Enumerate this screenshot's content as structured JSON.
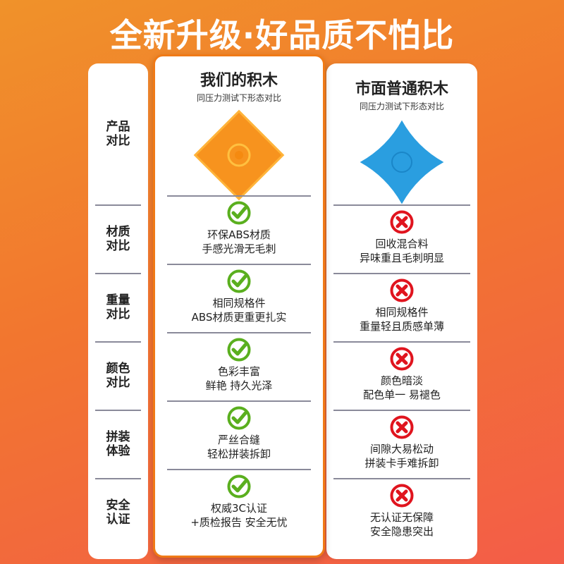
{
  "title": "全新升级·好品质不怕比",
  "ours": {
    "title": "我们的积木",
    "subtitle": "同压力测试下形态对比",
    "color": "#f7931e"
  },
  "others": {
    "title": "市面普通积木",
    "subtitle": "同压力测试下形态对比",
    "color": "#2a9ee0"
  },
  "header_label": "产品对比",
  "rows": [
    {
      "label": "材质对比",
      "ours": [
        "环保ABS材质",
        "手感光滑无毛刺"
      ],
      "others": [
        "回收混合料",
        "异味重且毛刺明显"
      ]
    },
    {
      "label": "重量对比",
      "ours": [
        "相同规格件",
        "ABS材质更重更扎实"
      ],
      "others": [
        "相同规格件",
        "重量轻且质感单薄"
      ]
    },
    {
      "label": "颜色对比",
      "ours": [
        "色彩丰富",
        "鲜艳 持久光泽"
      ],
      "others": [
        "颜色暗淡",
        "配色单一 易褪色"
      ]
    },
    {
      "label": "拼装体验",
      "ours": [
        "严丝合缝",
        "轻松拼装拆卸"
      ],
      "others": [
        "间隙大易松动",
        "拼装卡手难拆卸"
      ]
    },
    {
      "label": "安全认证",
      "ours": [
        "权威3C认证",
        "+质检报告 安全无忧"
      ],
      "others": [
        "无认证无保障",
        "安全隐患突出"
      ]
    }
  ],
  "icons": {
    "ours": "check-circle-icon",
    "others": "x-circle-icon",
    "check_color": "#5aaf1e",
    "x_color": "#e0141e"
  }
}
